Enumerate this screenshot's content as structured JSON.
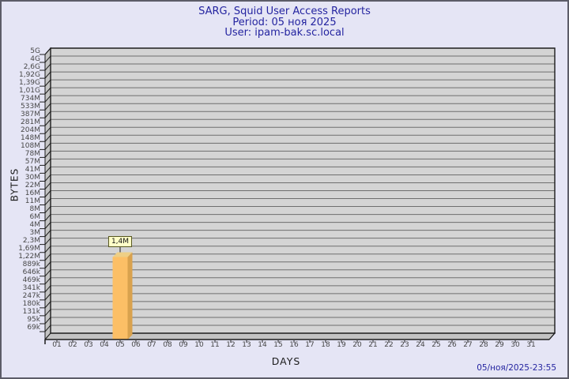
{
  "header": {
    "line1": "SARG, Squid User Access Reports",
    "line2": "Period: 05 ноя 2025",
    "line3": "User: ipam-bak.sc.local"
  },
  "footer": {
    "timestamp": "05/ноя/2025-23:55"
  },
  "chart_data": {
    "type": "bar",
    "title": "SARG, Squid User Access Reports",
    "subtitle": [
      "Period: 05 ноя 2025",
      "User: ipam-bak.sc.local"
    ],
    "xlabel": "DAYS",
    "ylabel": "BYTES",
    "y_scale": "log",
    "grid": true,
    "categories": [
      "01",
      "02",
      "03",
      "04",
      "05",
      "06",
      "07",
      "08",
      "09",
      "10",
      "11",
      "12",
      "13",
      "14",
      "15",
      "16",
      "17",
      "18",
      "19",
      "20",
      "21",
      "22",
      "23",
      "24",
      "25",
      "26",
      "27",
      "28",
      "29",
      "30",
      "31"
    ],
    "y_tick_labels": [
      "5G",
      "4G",
      "2,6G",
      "1,92G",
      "1,39G",
      "1,01G",
      "734M",
      "533M",
      "387M",
      "281M",
      "204M",
      "148M",
      "108M",
      "78M",
      "57M",
      "41M",
      "30M",
      "22M",
      "16M",
      "11M",
      "8M",
      "6M",
      "4M",
      "3M",
      "2,3M",
      "1,69M",
      "1,22M",
      "889k",
      "646k",
      "469k",
      "341k",
      "247k",
      "180k",
      "131k",
      "95k",
      "69k"
    ],
    "bars": [
      {
        "category": "05",
        "value": 1400000,
        "label": "1,4M"
      }
    ]
  },
  "colors": {
    "background": "#e5e5f5",
    "window_border": "#5c5c68",
    "title_text": "#2424a0",
    "plot_bg": "#d4d4d4",
    "grid_line": "#6e6e6e",
    "axis_line": "#1c1c1c",
    "wall_fill": "#c3c3c3",
    "tick_text": "#474747",
    "bar_front": "#fcbf66",
    "bar_side": "#d9a24e",
    "bar_top": "#eecf85",
    "value_box_bg": "#ffffc8",
    "value_box_border": "#55551e"
  }
}
